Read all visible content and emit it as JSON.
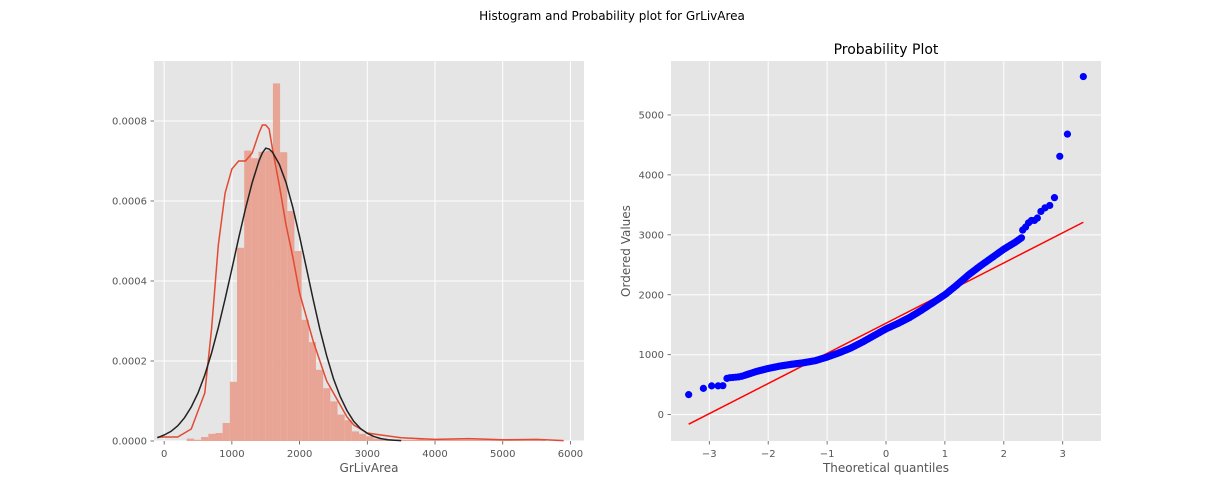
{
  "figure": {
    "suptitle": "Histogram and Probability plot for GrLivArea",
    "background": "#ffffff",
    "axes_facecolor": "#e5e5e5",
    "grid_color": "#ffffff"
  },
  "chart_data": [
    {
      "type": "bar",
      "title": "",
      "xlabel": "GrLivArea",
      "ylabel": "",
      "xlim": [
        -150,
        6200
      ],
      "ylim": [
        0,
        0.00095
      ],
      "xticks": [
        0,
        1000,
        2000,
        3000,
        4000,
        5000,
        6000
      ],
      "xticklabels": [
        "0",
        "1000",
        "2000",
        "3000",
        "4000",
        "5000",
        "6000"
      ],
      "yticks": [
        0,
        0.0002,
        0.0004,
        0.0006,
        0.0008
      ],
      "yticklabels": [
        "0.0000",
        "0.0002",
        "0.0004",
        "0.0006",
        "0.0008"
      ],
      "grid": true,
      "bins": {
        "start": 334,
        "width": 106,
        "density": [
          6e-06,
          3e-06,
          1e-05,
          1.8e-05,
          2e-05,
          4.5e-05,
          0.000148,
          0.000483,
          0.000726,
          0.000707,
          0.000723,
          0.000726,
          0.000894,
          0.000722,
          0.000575,
          0.000475,
          0.000303,
          0.000247,
          0.000178,
          0.000132,
          9.9e-05,
          6.6e-05,
          5.2e-05,
          2.4e-05,
          1.8e-05,
          1.2e-05,
          6e-06,
          6e-06,
          3e-06,
          3e-06,
          3e-06,
          3e-06,
          4e-06,
          3e-06,
          3e-06,
          3e-06,
          3e-06,
          3e-06,
          3e-06,
          3e-06,
          3e-06,
          3e-06,
          3e-06,
          3e-06,
          3e-06,
          3e-06,
          3e-06,
          3e-06,
          3e-06,
          3e-06
        ]
      },
      "bar_color": "#e8a494",
      "series": [
        {
          "name": "",
          "color": "#e24a33",
          "x": [
            -100,
            200,
            400,
            600,
            700,
            800,
            900,
            1000,
            1100,
            1200,
            1300,
            1400,
            1450,
            1500,
            1550,
            1600,
            1700,
            1800,
            1900,
            2000,
            2100,
            2200,
            2300,
            2400,
            2500,
            2600,
            2700,
            2800,
            2900,
            3000,
            3200,
            3500,
            4000,
            4500,
            5000,
            5500,
            5900
          ],
          "y": [
            1e-05,
            1e-05,
            3e-05,
            0.00012,
            0.00028,
            0.00049,
            0.00062,
            0.00068,
            0.0007,
            0.0007,
            0.00072,
            0.00077,
            0.00079,
            0.00079,
            0.00078,
            0.00073,
            0.00064,
            0.00054,
            0.00046,
            0.00037,
            0.00031,
            0.00025,
            0.0002,
            0.00015,
            0.00012,
            9e-05,
            6e-05,
            4e-05,
            3e-05,
            2e-05,
            1.5e-05,
            8e-06,
            4e-06,
            6e-06,
            3e-06,
            4e-06,
            1e-06
          ]
        },
        {
          "name": "",
          "color": "#222222",
          "x": [
            -100,
            0,
            100,
            200,
            300,
            400,
            500,
            600,
            700,
            800,
            900,
            1000,
            1100,
            1200,
            1300,
            1400,
            1450,
            1500,
            1550,
            1600,
            1700,
            1800,
            1900,
            2000,
            2100,
            2200,
            2300,
            2400,
            2500,
            2600,
            2700,
            2800,
            2900,
            3000,
            3100,
            3200,
            3300,
            3400,
            3500
          ],
          "y": [
            8e-06,
            1.5e-05,
            2.4e-05,
            3.8e-05,
            5.8e-05,
            8.5e-05,
            0.00012,
            0.000165,
            0.00022,
            0.000284,
            0.000355,
            0.00043,
            0.000507,
            0.00058,
            0.000646,
            0.0007,
            0.00072,
            0.000732,
            0.00073,
            0.000722,
            0.000692,
            0.000646,
            0.000584,
            0.000511,
            0.000433,
            0.000354,
            0.000279,
            0.000213,
            0.000156,
            0.000111,
            7.6e-05,
            4.9e-05,
            3.1e-05,
            1.9e-05,
            1.1e-05,
            6e-06,
            3e-06,
            2e-06,
            1e-06
          ]
        }
      ]
    },
    {
      "type": "scatter",
      "title": "Probability Plot",
      "xlabel": "Theoretical quantiles",
      "ylabel": "Ordered Values",
      "xlim": [
        -3.65,
        3.65
      ],
      "ylim": [
        -440,
        5900
      ],
      "xticks": [
        -3,
        -2,
        -1,
        0,
        1,
        2,
        3
      ],
      "xticklabels": [
        "−3",
        "−2",
        "−1",
        "0",
        "1",
        "2",
        "3"
      ],
      "yticks": [
        0,
        1000,
        2000,
        3000,
        4000,
        5000
      ],
      "yticklabels": [
        "0",
        "1000",
        "2000",
        "3000",
        "4000",
        "5000"
      ],
      "grid": true,
      "point_color": "#0000ff",
      "line_color": "#ff0000",
      "fit_line": {
        "x": [
          -3.35,
          3.35
        ],
        "y": [
          -160,
          3210
        ]
      },
      "ordered_values": {
        "head": [
          [
            -3.35,
            334
          ],
          [
            -3.1,
            438
          ],
          [
            -2.96,
            480
          ],
          [
            -2.85,
            480
          ],
          [
            -2.77,
            483
          ],
          [
            -2.7,
            605
          ],
          [
            -2.65,
            616
          ],
          [
            -2.6,
            620
          ],
          [
            -2.55,
            625
          ],
          [
            -2.5,
            630
          ],
          [
            -2.45,
            640
          ]
        ],
        "knots": [
          [
            -2.4,
            655
          ],
          [
            -2.2,
            720
          ],
          [
            -2.0,
            770
          ],
          [
            -1.8,
            810
          ],
          [
            -1.6,
            840
          ],
          [
            -1.4,
            865
          ],
          [
            -1.2,
            900
          ],
          [
            -1.0,
            960
          ],
          [
            -0.8,
            1030
          ],
          [
            -0.6,
            1110
          ],
          [
            -0.4,
            1210
          ],
          [
            -0.2,
            1320
          ],
          [
            0.0,
            1430
          ],
          [
            0.2,
            1520
          ],
          [
            0.4,
            1620
          ],
          [
            0.6,
            1740
          ],
          [
            0.8,
            1870
          ],
          [
            1.0,
            2000
          ],
          [
            1.2,
            2160
          ],
          [
            1.4,
            2330
          ],
          [
            1.6,
            2480
          ],
          [
            1.8,
            2620
          ],
          [
            2.0,
            2760
          ],
          [
            2.2,
            2880
          ],
          [
            2.3,
            2950
          ]
        ],
        "step": 0.025,
        "tail": [
          [
            2.32,
            3080
          ],
          [
            2.37,
            3130
          ],
          [
            2.42,
            3200
          ],
          [
            2.47,
            3240
          ],
          [
            2.52,
            3240
          ],
          [
            2.57,
            3280
          ],
          [
            2.63,
            3390
          ],
          [
            2.7,
            3450
          ],
          [
            2.78,
            3490
          ],
          [
            2.86,
            3620
          ],
          [
            2.95,
            4310
          ],
          [
            3.08,
            4680
          ],
          [
            3.35,
            5640
          ]
        ]
      }
    }
  ]
}
